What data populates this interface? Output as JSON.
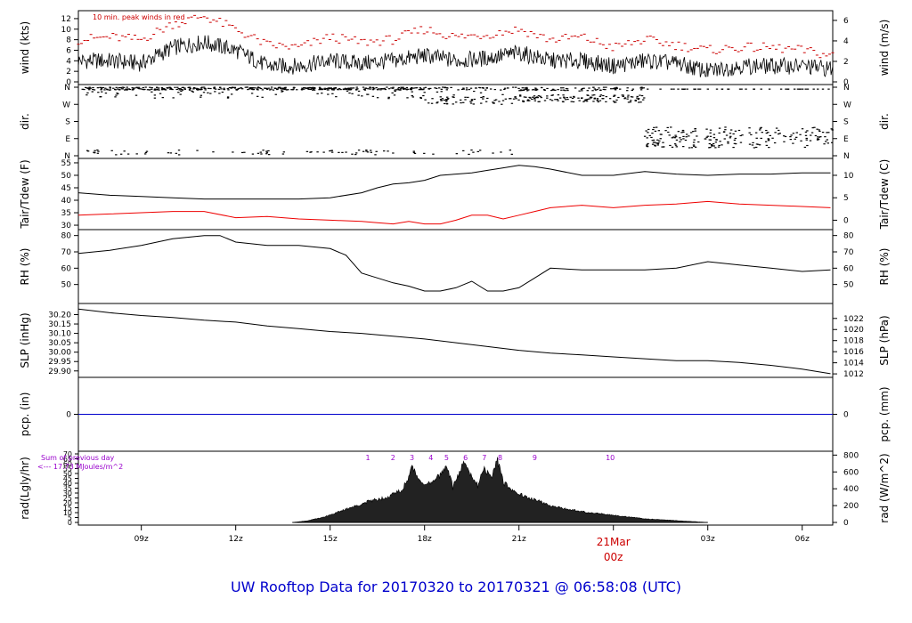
{
  "title": "UW Rooftop Data for 20170320  to  20170321 @ 06:58:08  (UTC)",
  "x_axis": {
    "ticks": [
      "09z",
      "12z",
      "15z",
      "18z",
      "21z",
      "03z",
      "06z"
    ],
    "tick_hours": [
      9,
      12,
      15,
      18,
      21,
      27,
      30
    ],
    "date_label": "21Mar",
    "date_sublabel": "00z",
    "date_hour": 24,
    "range_hours": [
      7.0,
      30.97
    ]
  },
  "colors": {
    "text": "#000000",
    "peak": "#cc0000",
    "dew": "#ee0000",
    "pcp": "#0000cc",
    "rad_note": "#9900cc",
    "title": "#0000cc",
    "date": "#cc0000"
  },
  "chart_data": [
    {
      "type": "line",
      "panel": "wind",
      "ylabel_left": "wind (kts)",
      "ylabel_right": "wind (m/s)",
      "ylim": [
        0,
        13
      ],
      "yticks_left": [
        "0",
        "2",
        "4",
        "6",
        "8",
        "10",
        "12"
      ],
      "yticks_right": [
        "0",
        "2",
        "4",
        "6"
      ],
      "annotation": "10 min. peak winds in red",
      "series": [
        {
          "x": [
            7,
            8,
            9,
            10,
            11,
            12,
            13,
            14,
            15,
            16,
            17,
            18,
            19,
            20,
            21,
            22,
            23,
            24,
            25,
            26,
            27,
            28,
            29,
            30,
            30.9
          ],
          "y": [
            4,
            4,
            3.5,
            6.5,
            7.5,
            6,
            3,
            3,
            4,
            3.5,
            4,
            5,
            4,
            4.5,
            5.5,
            4,
            4,
            3,
            4,
            3.5,
            2,
            3,
            3,
            3,
            2.5
          ]
        },
        {
          "x": [
            7,
            8,
            9,
            10,
            11,
            12,
            13,
            14,
            15,
            16,
            17,
            18,
            19,
            20,
            21,
            22,
            23,
            24,
            25,
            26,
            27,
            28,
            29,
            30,
            30.9
          ],
          "y": [
            8,
            8.5,
            8,
            11,
            12.5,
            10,
            7,
            6.5,
            8.5,
            7.5,
            8,
            10,
            8.5,
            9,
            10,
            8,
            8.5,
            6.5,
            8,
            7,
            6,
            6.5,
            6.5,
            6,
            5
          ]
        }
      ]
    },
    {
      "type": "scatter",
      "panel": "dir",
      "ylabel_left": "dir.",
      "ylabel_right": "dir.",
      "yticks_left": [
        "N",
        "W",
        "S",
        "E",
        "N"
      ],
      "yticks_right": [
        "N",
        "W",
        "S",
        "E",
        "N"
      ],
      "ylim": [
        0,
        360
      ]
    },
    {
      "type": "line",
      "panel": "temp",
      "ylabel_left": "Tair/Tdew (F)",
      "ylabel_right": "Tair/Tdew (C)",
      "ylim": [
        29.3,
        55.7
      ],
      "yticks_left": [
        "30",
        "35",
        "40",
        "45",
        "50",
        "55"
      ],
      "yticks_right": [
        "0",
        "5",
        "10"
      ],
      "series": [
        {
          "x": [
            7,
            8,
            9,
            10,
            11,
            12,
            13,
            14,
            15,
            16,
            16.5,
            17,
            17.5,
            18,
            18.5,
            19,
            19.5,
            20,
            20.5,
            21,
            21.5,
            22,
            23,
            24,
            25,
            26,
            27,
            28,
            29,
            30,
            30.9
          ],
          "y": [
            43,
            42,
            41.5,
            41,
            40.5,
            40.5,
            40.5,
            40.5,
            41,
            43,
            45,
            46.5,
            47,
            48,
            50,
            50.5,
            51,
            52,
            53,
            54,
            53.5,
            52.5,
            50,
            50,
            51.5,
            50.5,
            50,
            50.5,
            50.5,
            51,
            51
          ]
        },
        {
          "x": [
            7,
            8,
            9,
            10,
            11,
            12,
            13,
            14,
            15,
            16,
            16.5,
            17,
            17.5,
            18,
            18.5,
            19,
            19.5,
            20,
            20.5,
            21,
            21.5,
            22,
            23,
            24,
            25,
            26,
            27,
            28,
            29,
            30,
            30.9
          ],
          "y": [
            34,
            34.5,
            35,
            35.5,
            35.5,
            33,
            33.5,
            32.5,
            32,
            31.5,
            31,
            30.5,
            31.5,
            30.5,
            30.5,
            32,
            34,
            34,
            32.5,
            34,
            35.5,
            37,
            38,
            37,
            38,
            38.5,
            39.5,
            38.5,
            38,
            37.5,
            37
          ]
        }
      ]
    },
    {
      "type": "line",
      "panel": "rh",
      "ylabel_left": "RH (%)",
      "ylabel_right": "RH (%)",
      "ylim": [
        40,
        82
      ],
      "yticks_left": [
        "50",
        "60",
        "70",
        "80"
      ],
      "yticks_right": [
        "50",
        "60",
        "70",
        "80"
      ],
      "series": [
        {
          "x": [
            7,
            8,
            9,
            10,
            11,
            11.5,
            12,
            13,
            14,
            15,
            15.5,
            16,
            16.5,
            17,
            17.5,
            18,
            18.5,
            19,
            19.5,
            20,
            20.5,
            21,
            21.5,
            22,
            23,
            24,
            25,
            26,
            27,
            28,
            29,
            30,
            30.9
          ],
          "y": [
            69,
            71,
            74,
            78,
            80,
            80,
            76,
            74,
            74,
            72,
            68,
            57,
            54,
            51,
            49,
            46,
            46,
            48,
            52,
            46,
            46,
            48,
            54,
            60,
            59,
            59,
            59,
            60,
            64,
            62,
            60,
            58,
            59
          ]
        }
      ]
    },
    {
      "type": "line",
      "panel": "slp",
      "ylabel_left": "SLP (inHg)",
      "ylabel_right": "SLP (hPa)",
      "ylim": [
        29.88,
        30.245
      ],
      "yticks_left": [
        "29.90",
        "29.95",
        "30.00",
        "30.05",
        "30.10",
        "30.15",
        "30.20"
      ],
      "yticks_right": [
        "1012",
        "1014",
        "1016",
        "1018",
        "1020",
        "1022"
      ],
      "series": [
        {
          "x": [
            7,
            8,
            9,
            10,
            11,
            12,
            13,
            14,
            15,
            16,
            17,
            18,
            19,
            20,
            21,
            22,
            23,
            24,
            25,
            26,
            27,
            28,
            29,
            30,
            30.9
          ],
          "y": [
            30.23,
            30.21,
            30.195,
            30.185,
            30.17,
            30.16,
            30.14,
            30.125,
            30.11,
            30.1,
            30.085,
            30.07,
            30.05,
            30.03,
            30.01,
            29.995,
            29.985,
            29.975,
            29.965,
            29.955,
            29.955,
            29.945,
            29.93,
            29.91,
            29.885
          ]
        }
      ]
    },
    {
      "type": "line",
      "panel": "pcp",
      "ylabel_left": "pcp. (in)",
      "ylabel_right": "pcp. (mm)",
      "ylim": [
        -1,
        1
      ],
      "yticks_left": [
        "0"
      ],
      "yticks_right": [
        "0"
      ],
      "series": [
        {
          "x": [
            7,
            30.97
          ],
          "y": [
            0,
            0
          ]
        }
      ]
    },
    {
      "type": "area",
      "panel": "rad",
      "ylabel_left": "rad(Lgly/hr)",
      "ylabel_right": "rad (W/m^2)",
      "ylim": [
        0,
        70
      ],
      "yticks_left": [
        "0",
        "5",
        "10",
        "15",
        "20",
        "25",
        "30",
        "35",
        "40",
        "45",
        "50",
        "55",
        "60",
        "65",
        "70"
      ],
      "yticks_right": [
        "0",
        "200",
        "400",
        "600",
        "800"
      ],
      "note_line1": "Sum of previous day",
      "note_line2": "<--- 17.73 MJoules/m^2",
      "hour_labels": [
        "1",
        "2",
        "3",
        "4",
        "5",
        "6",
        "7",
        "8",
        "9",
        "10"
      ],
      "hour_label_x": [
        16.2,
        17.0,
        17.6,
        18.2,
        18.7,
        19.3,
        19.9,
        20.4,
        21.5,
        23.9
      ],
      "series": [
        {
          "x": [
            13.8,
            14.3,
            14.8,
            15.3,
            15.8,
            16.3,
            16.8,
            17.3,
            17.6,
            17.9,
            18.2,
            18.5,
            18.7,
            18.9,
            19.1,
            19.3,
            19.5,
            19.7,
            19.9,
            20.1,
            20.3,
            20.5,
            20.8,
            21.2,
            21.6,
            22,
            22.5,
            23,
            23.5,
            24,
            24.5,
            25,
            25.5,
            26,
            26.5,
            27
          ],
          "y": [
            0,
            2,
            6,
            12,
            18,
            24,
            28,
            36,
            60,
            45,
            42,
            52,
            65,
            38,
            55,
            68,
            50,
            40,
            62,
            48,
            70,
            44,
            36,
            28,
            24,
            18,
            15,
            12,
            10,
            8,
            6,
            4,
            3,
            2,
            1,
            0
          ]
        }
      ]
    }
  ]
}
